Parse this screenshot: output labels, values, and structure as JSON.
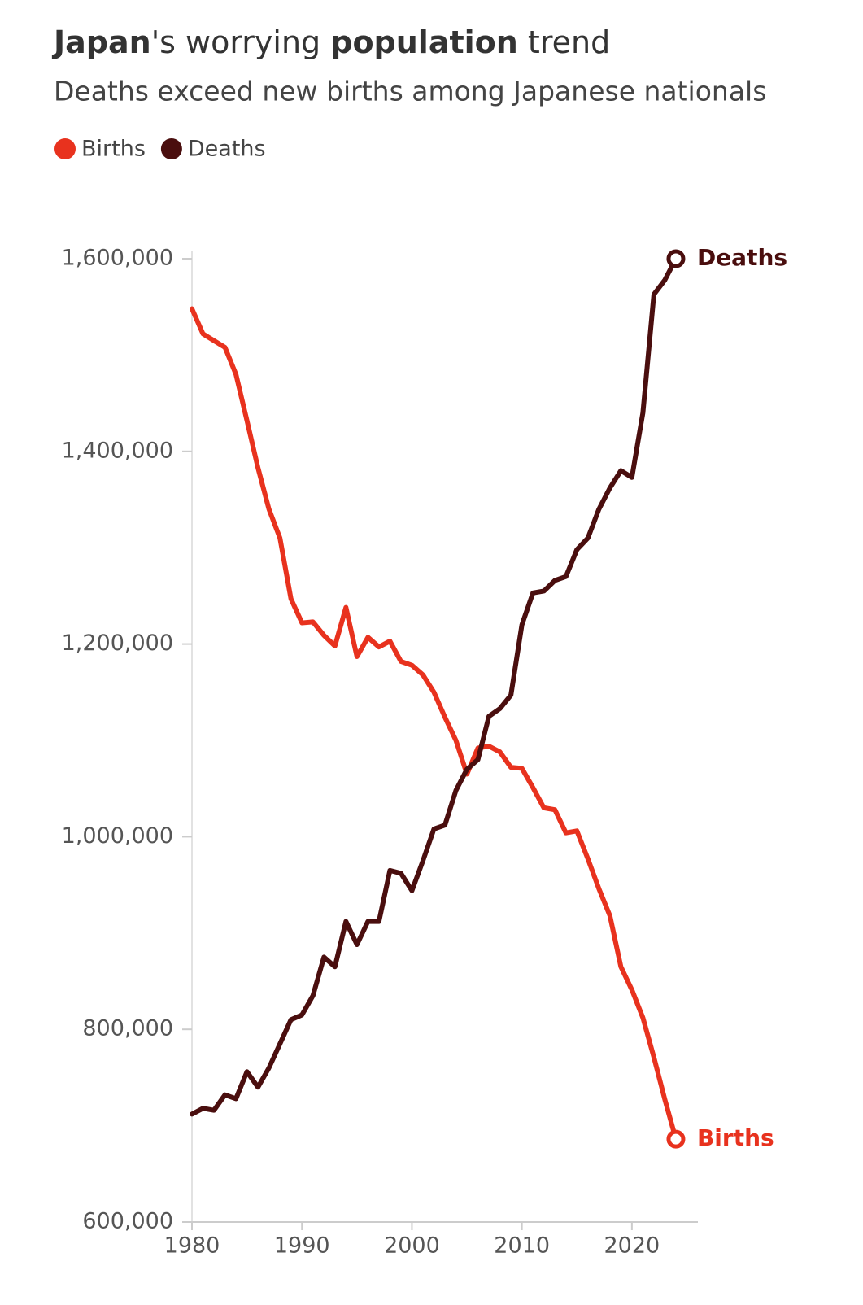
{
  "chart_data": {
    "type": "line",
    "title": [
      "Japan",
      "'s worrying ",
      "population",
      " trend"
    ],
    "title_bold": [
      true,
      false,
      true,
      false
    ],
    "subtitle": "Deaths exceed new births among Japanese nationals",
    "x": [
      1980,
      1981,
      1982,
      1983,
      1984,
      1985,
      1986,
      1987,
      1988,
      1989,
      1990,
      1991,
      1992,
      1993,
      1994,
      1995,
      1996,
      1997,
      1998,
      1999,
      2000,
      2001,
      2002,
      2003,
      2004,
      2005,
      2006,
      2007,
      2008,
      2009,
      2010,
      2011,
      2012,
      2013,
      2014,
      2015,
      2016,
      2017,
      2018,
      2019,
      2020,
      2021,
      2022,
      2023,
      2024
    ],
    "series": [
      {
        "name": "Births",
        "color": "#e8321e",
        "values": [
          1548000,
          1522000,
          1515000,
          1508000,
          1480000,
          1432000,
          1383000,
          1340000,
          1310000,
          1247000,
          1222000,
          1223000,
          1209000,
          1198000,
          1238000,
          1187000,
          1207000,
          1197000,
          1203000,
          1182000,
          1178000,
          1168000,
          1150000,
          1124000,
          1100000,
          1065000,
          1092000,
          1094000,
          1088000,
          1072000,
          1071000,
          1051000,
          1030000,
          1028000,
          1004000,
          1006000,
          977000,
          946000,
          918000,
          865000,
          841000,
          812000,
          771000,
          727000,
          686000
        ]
      },
      {
        "name": "Deaths",
        "color": "#4a0e0e",
        "values": [
          712000,
          718000,
          716000,
          732000,
          728000,
          756000,
          740000,
          760000,
          785000,
          810000,
          815000,
          835000,
          875000,
          865000,
          912000,
          888000,
          912000,
          912000,
          965000,
          962000,
          944000,
          975000,
          1008000,
          1012000,
          1048000,
          1070000,
          1080000,
          1125000,
          1133000,
          1147000,
          1220000,
          1253000,
          1255000,
          1266000,
          1270000,
          1298000,
          1310000,
          1340000,
          1362000,
          1380000,
          1373000,
          1440000,
          1563000,
          1578000,
          1600000
        ]
      }
    ],
    "xlim": [
      1980,
      2026
    ],
    "xticks": [
      1980,
      1990,
      2000,
      2010,
      2020
    ],
    "ylim": [
      600000,
      1600000
    ],
    "yticks": [
      {
        "value": 600000,
        "label": "600,000"
      },
      {
        "value": 800000,
        "label": "800,000"
      },
      {
        "value": 1000000,
        "label": "1,000,000"
      },
      {
        "value": 1200000,
        "label": "1,200,000"
      },
      {
        "value": 1400000,
        "label": "1,400,000"
      },
      {
        "value": 1600000,
        "label": "1,600,000"
      }
    ],
    "legend": "top"
  }
}
